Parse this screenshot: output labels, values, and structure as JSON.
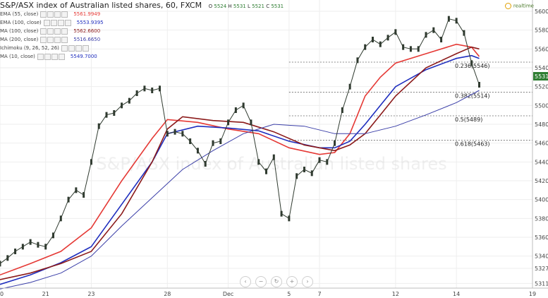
{
  "header": {
    "title": "S&P/ASX index of Australian listed shares, 60, FXCM",
    "ohlc": [
      {
        "label": "O",
        "value": "5524"
      },
      {
        "label": "H",
        "value": "5531"
      },
      {
        "label": "L",
        "value": "5521"
      },
      {
        "label": "C",
        "value": "5531"
      }
    ],
    "realtime_label": "realtime"
  },
  "indicators": [
    {
      "label": "EMA (55, close)",
      "value": "5561.9949",
      "color": "#e53935"
    },
    {
      "label": "EMA (100, close)",
      "value": "5553.9395",
      "color": "#1e2dbe"
    },
    {
      "label": "MA (100, close)",
      "value": "5562.6600",
      "color": "#8b1a1a"
    },
    {
      "label": "MA (200, close)",
      "value": "5516.6650",
      "color": "#3b3fa8"
    },
    {
      "label": "Ichimoku (9, 26, 52, 26)",
      "value": "",
      "color": "#aaaaaa"
    },
    {
      "label": "MA (10, close)",
      "value": "5549.7000",
      "color": "#1e2dbe"
    }
  ],
  "chart_data": {
    "type": "line",
    "xlim": [
      0,
      35
    ],
    "ylim": [
      5306,
      5606
    ],
    "x_ticks": [
      {
        "label": "20",
        "x": 0
      },
      {
        "label": "21",
        "x": 3
      },
      {
        "label": "23",
        "x": 6
      },
      {
        "label": "28",
        "x": 11
      },
      {
        "label": "Dec",
        "x": 15
      },
      {
        "label": "5",
        "x": 19
      },
      {
        "label": "7",
        "x": 21
      },
      {
        "label": "12",
        "x": 26
      },
      {
        "label": "14",
        "x": 30
      },
      {
        "label": "19",
        "x": 35
      }
    ],
    "y_ticks": [
      5311,
      5327,
      5340,
      5360,
      5380,
      5400,
      5420,
      5440,
      5460,
      5480,
      5500,
      5520,
      5540,
      5560,
      5580,
      5600
    ],
    "current_price": 5531,
    "current_price_label": "5531",
    "fib_levels": [
      {
        "label": "0.236(5546)",
        "value": 5546,
        "x_start": 19
      },
      {
        "label": "0.382(5514)",
        "value": 5514,
        "x_start": 19
      },
      {
        "label": "0.5(5489)",
        "value": 5489,
        "x_start": 19
      },
      {
        "label": "0.618(5463)",
        "value": 5463,
        "x_start": 19
      }
    ],
    "price_color": "#2f3a2f",
    "price": {
      "x": [
        0,
        0.5,
        1,
        1.5,
        2,
        2.5,
        3,
        3.5,
        4,
        4.5,
        5,
        5.5,
        6,
        6.5,
        7,
        7.5,
        8,
        8.5,
        9,
        9.5,
        10,
        10.5,
        11,
        11.5,
        12,
        12.5,
        13,
        13.5,
        14,
        14.5,
        15,
        15.5,
        16,
        16.5,
        17,
        17.5,
        18,
        18.5,
        19,
        19.5,
        20,
        20.5,
        21,
        21.5,
        22,
        22.5,
        23,
        23.5,
        24,
        24.5,
        25,
        25.5,
        26,
        26.5,
        27,
        27.5,
        28,
        28.5,
        29,
        29.5,
        30,
        30.5,
        31,
        31.5
      ],
      "y": [
        5332,
        5338,
        5345,
        5350,
        5355,
        5352,
        5350,
        5362,
        5380,
        5400,
        5410,
        5405,
        5440,
        5478,
        5490,
        5492,
        5500,
        5505,
        5513,
        5518,
        5516,
        5518,
        5470,
        5472,
        5470,
        5462,
        5452,
        5438,
        5460,
        5462,
        5482,
        5495,
        5500,
        5482,
        5440,
        5430,
        5445,
        5385,
        5380,
        5425,
        5432,
        5428,
        5442,
        5440,
        5460,
        5495,
        5520,
        5548,
        5562,
        5570,
        5565,
        5572,
        5578,
        5562,
        5560,
        5560,
        5575,
        5580,
        5570,
        5592,
        5590,
        5577,
        5545,
        5522
      ]
    },
    "series": [
      {
        "name": "EMA (55, close)",
        "color": "#e53935",
        "x": [
          0,
          2,
          4,
          6,
          8,
          10,
          11,
          13,
          15,
          17,
          19,
          21,
          22,
          23,
          24,
          25,
          26,
          28,
          30,
          31,
          31.5
        ],
        "y": [
          5320,
          5332,
          5345,
          5370,
          5420,
          5465,
          5485,
          5482,
          5475,
          5470,
          5455,
          5448,
          5450,
          5470,
          5510,
          5530,
          5545,
          5555,
          5565,
          5562,
          5552
        ]
      },
      {
        "name": "EMA (100, close)",
        "color": "#1e2dbe",
        "x": [
          0,
          2,
          4,
          6,
          8,
          10,
          11,
          13,
          15,
          17,
          19,
          21,
          22,
          23,
          24,
          25,
          26,
          28,
          30,
          31,
          31.5
        ],
        "y": [
          5310,
          5320,
          5333,
          5350,
          5395,
          5440,
          5470,
          5478,
          5476,
          5473,
          5462,
          5455,
          5455,
          5462,
          5480,
          5500,
          5520,
          5538,
          5550,
          5553,
          5550
        ]
      },
      {
        "name": "MA (100, close)",
        "color": "#8b1a1a",
        "x": [
          0,
          2,
          4,
          6,
          8,
          10,
          11,
          12,
          14,
          16,
          18,
          20,
          21,
          22,
          23,
          24,
          25,
          26,
          28,
          30,
          31,
          31.5
        ],
        "y": [
          5315,
          5322,
          5332,
          5345,
          5385,
          5440,
          5475,
          5488,
          5484,
          5482,
          5472,
          5458,
          5455,
          5452,
          5458,
          5470,
          5490,
          5510,
          5540,
          5555,
          5562,
          5560
        ]
      },
      {
        "name": "MA (200, close)",
        "color": "#3b3fa8",
        "x": [
          0,
          2,
          4,
          6,
          8,
          10,
          12,
          14,
          16,
          18,
          20,
          22,
          24,
          26,
          28,
          30,
          31.5
        ],
        "y": [
          5305,
          5312,
          5322,
          5340,
          5372,
          5402,
          5432,
          5452,
          5470,
          5480,
          5478,
          5470,
          5470,
          5478,
          5490,
          5503,
          5516
        ]
      }
    ],
    "annotations": [
      {
        "label": "S&P/ASX index of Australian listed shares"
      }
    ]
  }
}
